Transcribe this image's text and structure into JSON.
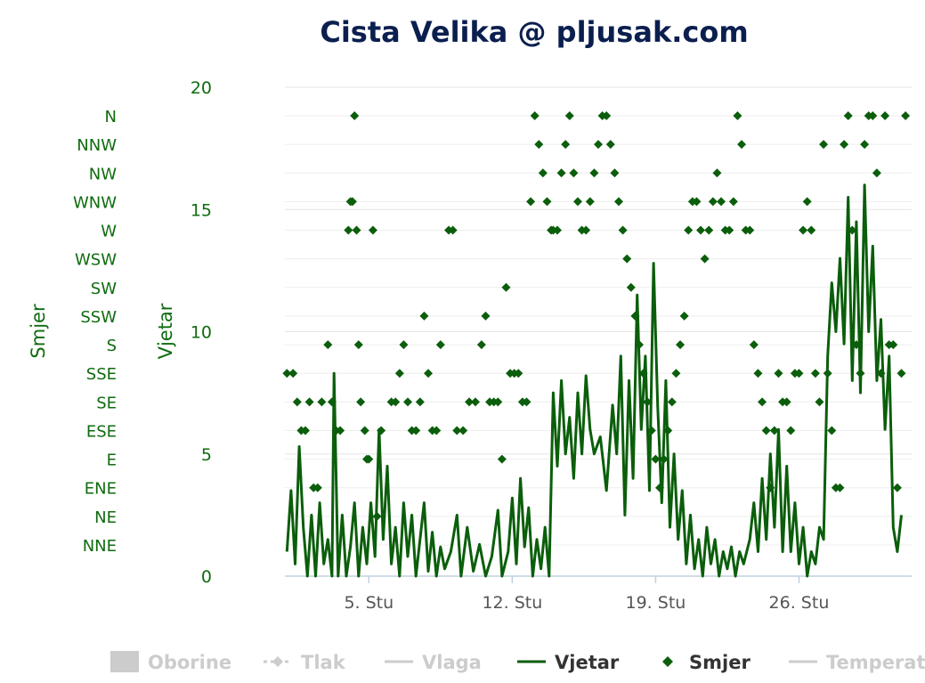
{
  "chart_data": {
    "type": "line",
    "title": "Cista Velika @ pljusak.com",
    "y_left_label": "Smjer",
    "y_left_categories": [
      "NNE",
      "NE",
      "ENE",
      "E",
      "ESE",
      "SE",
      "SSE",
      "S",
      "SSW",
      "SW",
      "WSW",
      "W",
      "WNW",
      "NW",
      "NNW",
      "N"
    ],
    "y_right_label": "Vjetar",
    "ylim": [
      0,
      20
    ],
    "y_ticks": [
      0,
      5,
      10,
      15,
      20
    ],
    "x_ticks": [
      {
        "day": 5,
        "label": "5. Stu"
      },
      {
        "day": 12,
        "label": "12. Stu"
      },
      {
        "day": 19,
        "label": "19. Stu"
      },
      {
        "day": 26,
        "label": "26. Stu"
      }
    ],
    "xlim": [
      0.9,
      31.5
    ],
    "grid": true,
    "legend_position": "bottom",
    "legend": [
      {
        "name": "Oborine",
        "symbol": "area",
        "active": false
      },
      {
        "name": "Tlak",
        "symbol": "dash-diamond",
        "active": false
      },
      {
        "name": "Vlaga",
        "symbol": "line",
        "active": false
      },
      {
        "name": "Vjetar",
        "symbol": "line",
        "active": true
      },
      {
        "name": "Smjer",
        "symbol": "diamond",
        "active": true
      },
      {
        "name": "Temperatu",
        "symbol": "line",
        "active": false
      }
    ],
    "series": [
      {
        "name": "Vjetar",
        "color": "#0b5e0b",
        "points": [
          [
            1.0,
            1
          ],
          [
            1.2,
            3.5
          ],
          [
            1.4,
            0.5
          ],
          [
            1.6,
            5.3
          ],
          [
            1.8,
            2
          ],
          [
            2.0,
            0
          ],
          [
            2.2,
            2.5
          ],
          [
            2.4,
            0
          ],
          [
            2.6,
            3
          ],
          [
            2.8,
            0.5
          ],
          [
            3.0,
            1.5
          ],
          [
            3.2,
            0
          ],
          [
            3.3,
            8.3
          ],
          [
            3.5,
            0
          ],
          [
            3.7,
            2.5
          ],
          [
            3.9,
            0
          ],
          [
            4.1,
            1.2
          ],
          [
            4.3,
            3
          ],
          [
            4.5,
            0
          ],
          [
            4.7,
            2
          ],
          [
            4.9,
            0.5
          ],
          [
            5.1,
            3
          ],
          [
            5.3,
            0.8
          ],
          [
            5.5,
            6
          ],
          [
            5.7,
            1.5
          ],
          [
            5.9,
            4.5
          ],
          [
            6.1,
            0.5
          ],
          [
            6.3,
            2
          ],
          [
            6.5,
            0
          ],
          [
            6.7,
            3
          ],
          [
            6.9,
            0.8
          ],
          [
            7.1,
            2.5
          ],
          [
            7.3,
            0
          ],
          [
            7.5,
            1.5
          ],
          [
            7.7,
            3
          ],
          [
            7.9,
            0.2
          ],
          [
            8.1,
            1.8
          ],
          [
            8.3,
            0
          ],
          [
            8.5,
            1.2
          ],
          [
            8.7,
            0.3
          ],
          [
            9.0,
            1
          ],
          [
            9.3,
            2.5
          ],
          [
            9.5,
            0
          ],
          [
            9.8,
            2
          ],
          [
            10.1,
            0.2
          ],
          [
            10.4,
            1.3
          ],
          [
            10.7,
            0
          ],
          [
            11.0,
            0.8
          ],
          [
            11.3,
            2.7
          ],
          [
            11.5,
            0
          ],
          [
            11.8,
            1
          ],
          [
            12.0,
            3.2
          ],
          [
            12.2,
            0.5
          ],
          [
            12.4,
            4
          ],
          [
            12.6,
            1.2
          ],
          [
            12.8,
            2.8
          ],
          [
            13.0,
            0
          ],
          [
            13.2,
            1.5
          ],
          [
            13.4,
            0.3
          ],
          [
            13.6,
            2
          ],
          [
            13.8,
            0
          ],
          [
            14.0,
            7.5
          ],
          [
            14.2,
            4.5
          ],
          [
            14.4,
            8
          ],
          [
            14.6,
            5
          ],
          [
            14.8,
            6.5
          ],
          [
            15.0,
            4
          ],
          [
            15.2,
            7.5
          ],
          [
            15.4,
            5
          ],
          [
            15.6,
            8.2
          ],
          [
            15.8,
            6
          ],
          [
            16.0,
            5
          ],
          [
            16.3,
            5.7
          ],
          [
            16.6,
            3.5
          ],
          [
            16.9,
            7
          ],
          [
            17.1,
            5
          ],
          [
            17.3,
            9
          ],
          [
            17.5,
            2.5
          ],
          [
            17.7,
            8
          ],
          [
            17.9,
            4
          ],
          [
            18.1,
            11.5
          ],
          [
            18.3,
            6
          ],
          [
            18.5,
            9
          ],
          [
            18.7,
            3.5
          ],
          [
            18.9,
            12.8
          ],
          [
            19.1,
            7
          ],
          [
            19.3,
            3
          ],
          [
            19.5,
            8
          ],
          [
            19.7,
            2
          ],
          [
            19.9,
            5
          ],
          [
            20.1,
            1.5
          ],
          [
            20.3,
            3.5
          ],
          [
            20.5,
            0.5
          ],
          [
            20.7,
            2.5
          ],
          [
            20.9,
            0.3
          ],
          [
            21.1,
            1.5
          ],
          [
            21.3,
            0
          ],
          [
            21.5,
            2
          ],
          [
            21.7,
            0.5
          ],
          [
            21.9,
            1.5
          ],
          [
            22.1,
            0
          ],
          [
            22.3,
            1
          ],
          [
            22.5,
            0.3
          ],
          [
            22.7,
            1.2
          ],
          [
            22.9,
            0
          ],
          [
            23.1,
            1
          ],
          [
            23.3,
            0.5
          ],
          [
            23.6,
            1.5
          ],
          [
            23.8,
            3
          ],
          [
            24.0,
            1
          ],
          [
            24.2,
            4
          ],
          [
            24.4,
            1.5
          ],
          [
            24.6,
            5
          ],
          [
            24.8,
            2
          ],
          [
            25.0,
            6
          ],
          [
            25.2,
            1
          ],
          [
            25.4,
            4.5
          ],
          [
            25.6,
            1
          ],
          [
            25.8,
            3
          ],
          [
            26.0,
            0.5
          ],
          [
            26.2,
            2
          ],
          [
            26.4,
            0
          ],
          [
            26.6,
            1
          ],
          [
            26.8,
            0.5
          ],
          [
            27.0,
            2
          ],
          [
            27.2,
            1.5
          ],
          [
            27.4,
            9
          ],
          [
            27.6,
            12
          ],
          [
            27.8,
            10
          ],
          [
            28.0,
            13
          ],
          [
            28.2,
            9.5
          ],
          [
            28.4,
            15.5
          ],
          [
            28.6,
            8
          ],
          [
            28.8,
            14.5
          ],
          [
            29.0,
            7.5
          ],
          [
            29.2,
            16
          ],
          [
            29.4,
            10
          ],
          [
            29.6,
            13.5
          ],
          [
            29.8,
            8
          ],
          [
            30.0,
            10.5
          ],
          [
            30.2,
            6
          ],
          [
            30.4,
            9
          ],
          [
            30.6,
            2
          ],
          [
            30.8,
            1
          ],
          [
            31.0,
            2.5
          ]
        ]
      },
      {
        "name": "Smjer",
        "color": "#0b5e0b",
        "points": [
          [
            1.0,
            7
          ],
          [
            1.3,
            7
          ],
          [
            1.5,
            6
          ],
          [
            1.7,
            5
          ],
          [
            1.9,
            5
          ],
          [
            2.1,
            6
          ],
          [
            2.3,
            3
          ],
          [
            2.5,
            3
          ],
          [
            2.7,
            6
          ],
          [
            3.0,
            8
          ],
          [
            3.2,
            6
          ],
          [
            3.4,
            5
          ],
          [
            3.6,
            5
          ],
          [
            4.0,
            12
          ],
          [
            4.1,
            13
          ],
          [
            4.2,
            13
          ],
          [
            4.3,
            16
          ],
          [
            4.4,
            12
          ],
          [
            4.5,
            8
          ],
          [
            4.6,
            6
          ],
          [
            4.8,
            5
          ],
          [
            4.9,
            4
          ],
          [
            5.0,
            4
          ],
          [
            5.2,
            12
          ],
          [
            5.4,
            2
          ],
          [
            5.6,
            5
          ],
          [
            6.1,
            6
          ],
          [
            6.3,
            6
          ],
          [
            6.5,
            7
          ],
          [
            6.7,
            8
          ],
          [
            6.9,
            6
          ],
          [
            7.1,
            5
          ],
          [
            7.3,
            5
          ],
          [
            7.5,
            6
          ],
          [
            7.7,
            9
          ],
          [
            7.9,
            7
          ],
          [
            8.1,
            5
          ],
          [
            8.3,
            5
          ],
          [
            8.5,
            8
          ],
          [
            8.9,
            12
          ],
          [
            9.1,
            12
          ],
          [
            9.3,
            5
          ],
          [
            9.6,
            5
          ],
          [
            9.9,
            6
          ],
          [
            10.2,
            6
          ],
          [
            10.5,
            8
          ],
          [
            10.7,
            9
          ],
          [
            10.9,
            6
          ],
          [
            11.1,
            6
          ],
          [
            11.3,
            6
          ],
          [
            11.5,
            4
          ],
          [
            11.7,
            10
          ],
          [
            11.9,
            7
          ],
          [
            12.1,
            7
          ],
          [
            12.3,
            7
          ],
          [
            12.5,
            6
          ],
          [
            12.7,
            6
          ],
          [
            12.9,
            13
          ],
          [
            13.1,
            16
          ],
          [
            13.3,
            15
          ],
          [
            13.5,
            14
          ],
          [
            13.7,
            13
          ],
          [
            13.9,
            12
          ],
          [
            14.0,
            12
          ],
          [
            14.2,
            12
          ],
          [
            14.4,
            14
          ],
          [
            14.6,
            15
          ],
          [
            14.8,
            16
          ],
          [
            15.0,
            14
          ],
          [
            15.2,
            13
          ],
          [
            15.4,
            12
          ],
          [
            15.6,
            12
          ],
          [
            15.8,
            13
          ],
          [
            16.0,
            14
          ],
          [
            16.2,
            15
          ],
          [
            16.4,
            16
          ],
          [
            16.6,
            16
          ],
          [
            16.8,
            15
          ],
          [
            17.0,
            14
          ],
          [
            17.2,
            13
          ],
          [
            17.4,
            12
          ],
          [
            17.6,
            11
          ],
          [
            17.8,
            10
          ],
          [
            18.0,
            9
          ],
          [
            18.2,
            8
          ],
          [
            18.4,
            7
          ],
          [
            18.6,
            6
          ],
          [
            18.8,
            5
          ],
          [
            19.0,
            4
          ],
          [
            19.2,
            3
          ],
          [
            19.4,
            4
          ],
          [
            19.6,
            5
          ],
          [
            19.8,
            6
          ],
          [
            20.0,
            7
          ],
          [
            20.2,
            8
          ],
          [
            20.4,
            9
          ],
          [
            20.6,
            12
          ],
          [
            20.8,
            13
          ],
          [
            21.0,
            13
          ],
          [
            21.2,
            12
          ],
          [
            21.4,
            11
          ],
          [
            21.6,
            12
          ],
          [
            21.8,
            13
          ],
          [
            22.0,
            14
          ],
          [
            22.2,
            13
          ],
          [
            22.4,
            12
          ],
          [
            22.6,
            12
          ],
          [
            22.8,
            13
          ],
          [
            23.0,
            16
          ],
          [
            23.2,
            15
          ],
          [
            23.4,
            12
          ],
          [
            23.6,
            12
          ],
          [
            23.8,
            8
          ],
          [
            24.0,
            7
          ],
          [
            24.2,
            6
          ],
          [
            24.4,
            5
          ],
          [
            24.6,
            3
          ],
          [
            24.8,
            5
          ],
          [
            25.0,
            7
          ],
          [
            25.2,
            6
          ],
          [
            25.4,
            6
          ],
          [
            25.6,
            5
          ],
          [
            25.8,
            7
          ],
          [
            26.0,
            7
          ],
          [
            26.2,
            12
          ],
          [
            26.4,
            13
          ],
          [
            26.6,
            12
          ],
          [
            26.8,
            7
          ],
          [
            27.0,
            6
          ],
          [
            27.2,
            15
          ],
          [
            27.4,
            7
          ],
          [
            27.6,
            5
          ],
          [
            27.8,
            3
          ],
          [
            28.0,
            3
          ],
          [
            28.2,
            15
          ],
          [
            28.4,
            16
          ],
          [
            28.6,
            12
          ],
          [
            28.8,
            8
          ],
          [
            29.0,
            7
          ],
          [
            29.2,
            15
          ],
          [
            29.4,
            16
          ],
          [
            29.6,
            16
          ],
          [
            29.8,
            14
          ],
          [
            30.0,
            7
          ],
          [
            30.2,
            16
          ],
          [
            30.4,
            8
          ],
          [
            30.6,
            8
          ],
          [
            30.8,
            3
          ],
          [
            31.0,
            7
          ],
          [
            31.2,
            16
          ]
        ]
      }
    ]
  }
}
